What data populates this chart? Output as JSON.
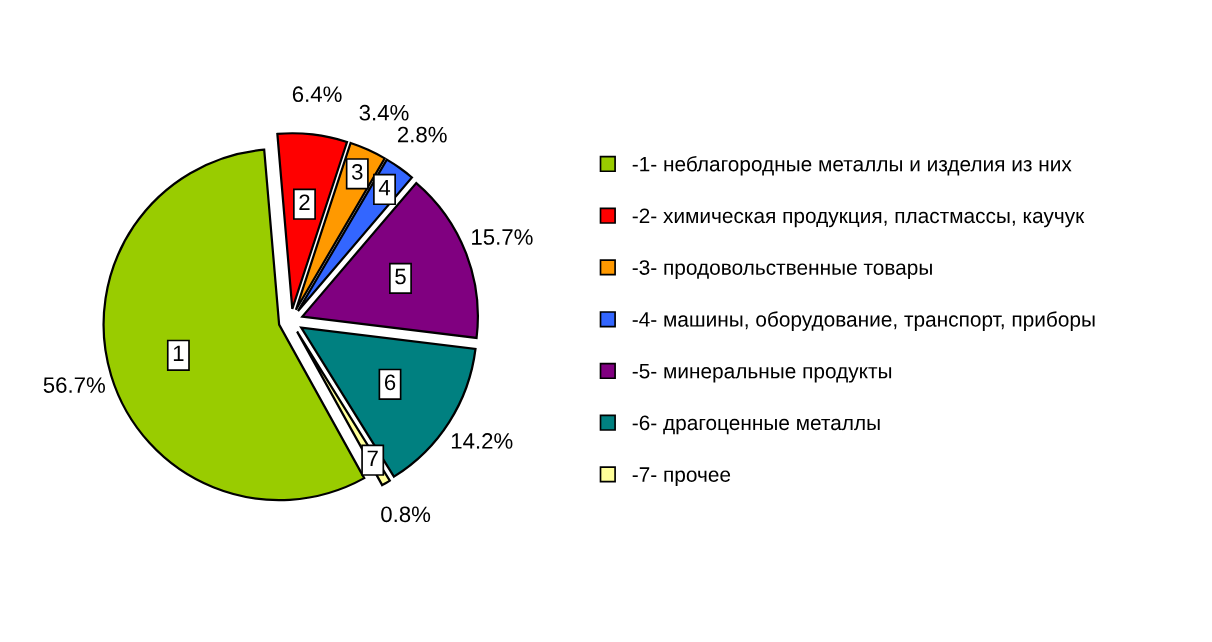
{
  "chart_data": {
    "type": "pie",
    "categories": [
      "-1- неблагородные металлы и изделия из них",
      "-2- химическая продукция, пластмассы, каучук",
      "-3- продовольственные товары",
      "-4- машины, оборудование, транспорт, приборы",
      "-5- минеральные продукты",
      "-6- драгоценные металлы",
      "-7- прочее"
    ],
    "values": [
      56.7,
      6.4,
      3.4,
      2.8,
      15.7,
      14.2,
      0.8
    ],
    "value_labels": [
      "56.7%",
      "6.4%",
      "3.4%",
      "2.8%",
      "15.7%",
      "14.2%",
      "0.8%"
    ],
    "colors": [
      "#99cc00",
      "#ff0000",
      "#ff9900",
      "#3366ff",
      "#800080",
      "#008080",
      "#ffff99"
    ],
    "annotations": [
      "1",
      "2",
      "3",
      "4",
      "5",
      "6",
      "7"
    ],
    "legend": "right"
  }
}
